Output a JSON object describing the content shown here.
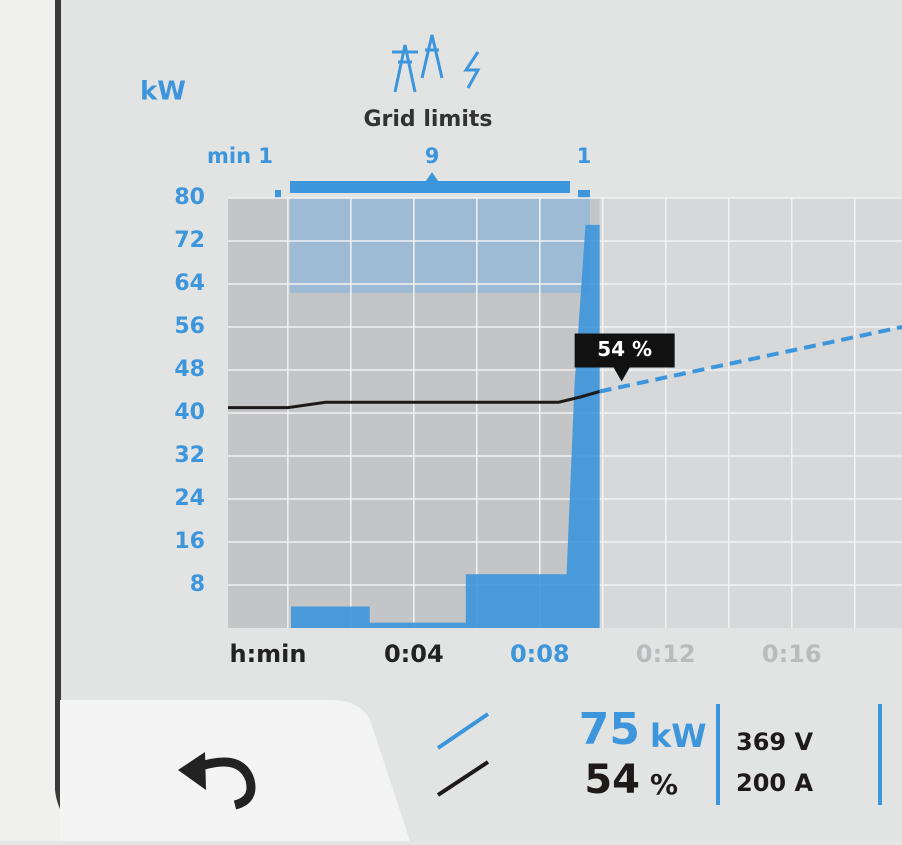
{
  "header": {
    "unit": "kW",
    "title": "Grid limits",
    "limits": [
      "min 1",
      "9",
      "1"
    ]
  },
  "chart_data": {
    "type": "line",
    "xlabel": "h:min",
    "xlim": [
      -1.9,
      19.5
    ],
    "xticks": [
      {
        "value": 4,
        "label": "0:04"
      },
      {
        "value": 8,
        "label": "0:08"
      },
      {
        "value": 12,
        "label": "0:12"
      },
      {
        "value": 16,
        "label": "0:16"
      }
    ],
    "ylim": [
      0,
      80
    ],
    "yticks": [
      8,
      16,
      24,
      32,
      40,
      48,
      56,
      64,
      72,
      80
    ],
    "grid": true,
    "series": [
      {
        "style": "area",
        "color": "#3d95dc",
        "x": [
          0.1,
          2.6,
          2.6,
          5.65,
          5.65,
          8.85,
          9.1,
          9.45,
          9.9
        ],
        "values": [
          4,
          4,
          1,
          1,
          10,
          10,
          45,
          75,
          75
        ]
      },
      {
        "style": "solid",
        "color": "#1e1a1a",
        "x": [
          -1.9,
          0.0,
          1.2,
          8.6,
          9.3,
          9.9
        ],
        "values": [
          41,
          41,
          42,
          42,
          43,
          44
        ]
      },
      {
        "style": "dashed",
        "color": "#3d95dc",
        "x": [
          9.9,
          19.5
        ],
        "values": [
          44,
          56
        ]
      }
    ],
    "annotation": "54 %"
  },
  "status": {
    "power": "75",
    "power_unit": "kW",
    "soc": "54",
    "soc_unit": "%",
    "voltage": "369 V",
    "current": "200 A"
  }
}
